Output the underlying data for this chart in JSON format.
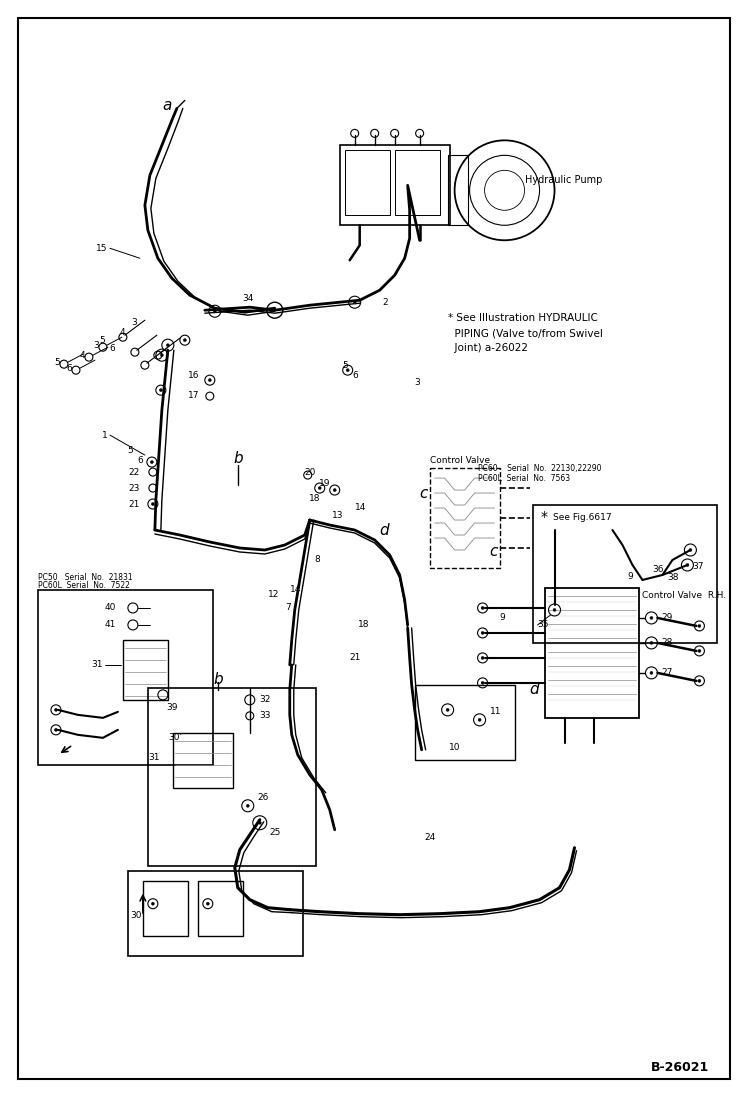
{
  "bg_color": "#ffffff",
  "figure_width": 7.49,
  "figure_height": 10.97,
  "dpi": 100,
  "page_code": "B-26021",
  "note_text_line1": "* See Illustration HYDRAULIC",
  "note_text_line2": "  PIPING (Valve to/from Swivel",
  "note_text_line3": "  Joint) a-26022",
  "serial_top_line1": "PC60    Serial  No.  22130,22290",
  "serial_top_line2": "PC60L  Serial  No.  7563",
  "serial_box1_line1": "PC50   Serial  No.  21831",
  "serial_box1_line2": "PC60L  Serial  No.  7522",
  "see_fig": "See Fig.6617",
  "ctrl_valve": "Control Valve",
  "ctrl_valve_rh": "Control Valve  R.H.",
  "hyd_pump": "Hydraulic Pump"
}
